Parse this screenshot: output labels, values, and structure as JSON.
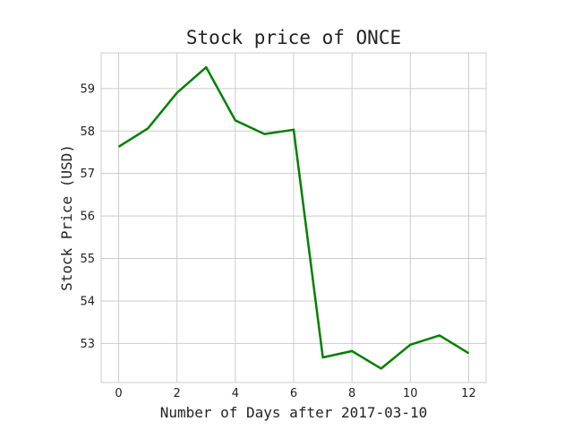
{
  "chart_data": {
    "type": "line",
    "title": "Stock price of ONCE",
    "xlabel": "Number of Days after 2017-03-10",
    "ylabel": "Stock Price (USD)",
    "xlim": [
      -0.6,
      12.6
    ],
    "ylim": [
      52.08,
      59.84
    ],
    "x_ticks": [
      0,
      2,
      4,
      6,
      8,
      10,
      12
    ],
    "y_ticks": [
      53,
      54,
      55,
      56,
      57,
      58,
      59
    ],
    "grid": true,
    "series": [
      {
        "color": "#008000",
        "x": [
          0,
          1,
          2,
          3,
          4,
          5,
          6,
          7,
          8,
          9,
          10,
          11,
          12
        ],
        "y": [
          57.63,
          58.06,
          58.9,
          59.5,
          58.25,
          57.93,
          58.03,
          52.67,
          52.82,
          52.41,
          52.97,
          53.19,
          52.77
        ]
      }
    ]
  }
}
